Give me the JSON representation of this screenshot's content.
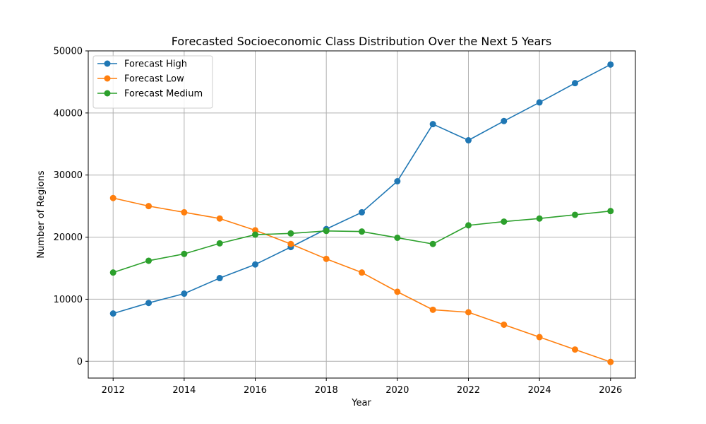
{
  "chart_data": {
    "type": "line",
    "title": "Forecasted Socioeconomic Class Distribution Over the Next 5 Years",
    "xlabel": "Year",
    "ylabel": "Number of Regions",
    "xlim": [
      2011.3,
      2026.7
    ],
    "ylim": [
      -2700,
      50000
    ],
    "x_ticks": [
      2012,
      2014,
      2016,
      2018,
      2020,
      2022,
      2024,
      2026
    ],
    "y_ticks": [
      0,
      10000,
      20000,
      30000,
      40000,
      50000
    ],
    "grid": true,
    "legend_position": "top-left",
    "x": [
      2012,
      2013,
      2014,
      2015,
      2016,
      2017,
      2018,
      2019,
      2020,
      2021,
      2022,
      2023,
      2024,
      2025,
      2026
    ],
    "series": [
      {
        "name": "Forecast High",
        "color": "#1f77b4",
        "values": [
          7700,
          9400,
          10900,
          13400,
          15600,
          18400,
          21300,
          24000,
          29000,
          38200,
          35600,
          38700,
          41700,
          44800,
          47800
        ]
      },
      {
        "name": "Forecast Low",
        "color": "#ff7f0e",
        "values": [
          26300,
          25000,
          24000,
          23000,
          21100,
          18900,
          16500,
          14300,
          11200,
          8300,
          7900,
          5900,
          3900,
          1900,
          -100
        ]
      },
      {
        "name": "Forecast Medium",
        "color": "#2ca02c",
        "values": [
          14300,
          16200,
          17300,
          19000,
          20400,
          20600,
          21000,
          20900,
          19900,
          18900,
          21900,
          22500,
          23000,
          23600,
          24200
        ]
      }
    ]
  }
}
